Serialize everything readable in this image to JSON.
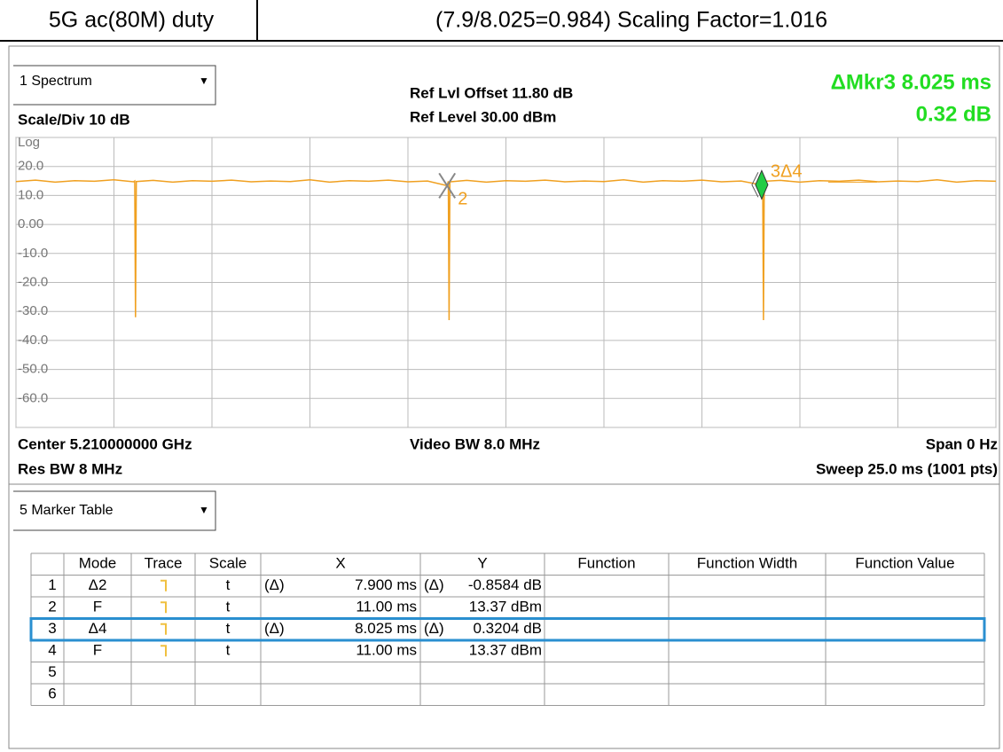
{
  "header": {
    "left": "5G ac(80M) duty",
    "right": "(7.9/8.025=0.984) Scaling Factor=1.016"
  },
  "spectrum": {
    "window": "1 Spectrum",
    "scale_div": "Scale/Div 10 dB",
    "ref_offset": "Ref Lvl Offset 11.80 dB",
    "ref_level": "Ref Level 30.00 dBm",
    "readout": [
      "ΔMkr3  8.025 ms",
      "0.32 dB"
    ],
    "scale_type": "Log",
    "center": "Center 5.210000000 GHz",
    "res_bw": "Res BW 8 MHz",
    "video_bw": "Video BW 8.0 MHz",
    "span": "Span 0 Hz",
    "sweep": "Sweep 25.0 ms (1001 pts)"
  },
  "chart_data": {
    "type": "line",
    "color": "#f0a020",
    "grid": true,
    "xlim": [
      0,
      25
    ],
    "ylim": [
      -70,
      30
    ],
    "xticks": [
      0,
      2.5,
      5,
      7.5,
      10,
      12.5,
      15,
      17.5,
      20,
      22.5,
      25
    ],
    "yticks": [
      {
        "value": 30,
        "label": "Log"
      },
      {
        "value": 20,
        "label": "20.0"
      },
      {
        "value": 10,
        "label": "10.0"
      },
      {
        "value": 0,
        "label": "0.00"
      },
      {
        "value": -10,
        "label": "-10.0"
      },
      {
        "value": -20,
        "label": "-20.0"
      },
      {
        "value": -30,
        "label": "-30.0"
      },
      {
        "value": -40,
        "label": "-40.0"
      },
      {
        "value": -50,
        "label": "-50.0"
      },
      {
        "value": -60,
        "label": "-60.0"
      },
      -70
    ],
    "x": [
      0,
      0.5,
      1,
      1.5,
      2,
      2.5,
      3,
      3.03,
      3.05,
      3.07,
      3.5,
      4,
      4.5,
      5,
      5.5,
      6,
      6.5,
      7,
      7.5,
      8,
      8.5,
      9,
      9.5,
      10,
      10.5,
      11,
      11.03,
      11.05,
      11.07,
      11.5,
      12,
      12.5,
      13,
      13.5,
      14,
      14.5,
      15,
      15.5,
      16,
      16.5,
      17,
      17.5,
      18,
      18.5,
      19,
      19.05,
      19.07,
      19.09,
      19.5,
      20,
      20.5,
      21,
      21.5,
      22,
      22.5,
      23,
      23.5,
      24,
      24.5,
      25
    ],
    "values": [
      14.8,
      15.3,
      14.6,
      15.1,
      14.9,
      15.4,
      14.7,
      15.0,
      -32,
      14.8,
      15.2,
      14.6,
      15.1,
      14.9,
      15.3,
      14.7,
      15.0,
      14.8,
      15.4,
      14.6,
      15.1,
      14.9,
      15.3,
      14.7,
      15.0,
      13.37,
      14.9,
      -33,
      14.7,
      15.2,
      14.6,
      15.1,
      14.9,
      15.3,
      14.7,
      15.0,
      14.8,
      15.4,
      14.6,
      15.1,
      14.9,
      15.3,
      14.7,
      15.0,
      13.69,
      14.8,
      -33,
      14.9,
      15.2,
      14.6,
      15.1,
      14.9,
      15.3,
      14.7,
      15.0,
      14.8,
      15.4,
      14.6,
      15.1,
      14.9
    ],
    "markers": [
      {
        "label": "2",
        "x": 11.0,
        "y": 13.37
      },
      {
        "label": "3Δ4",
        "x": 19.025,
        "y": 13.69
      }
    ]
  },
  "marker_table": {
    "window": "5 Marker Table",
    "columns": [
      "Mode",
      "Trace",
      "Scale",
      "X",
      "Y",
      "Function",
      "Function Width",
      "Function Value"
    ],
    "rows": [
      {
        "n": "1",
        "mode": "Δ2",
        "scale": "t",
        "x_delta": "(Δ)",
        "x": "7.900 ms",
        "y_delta": "(Δ)",
        "y": "-0.8584 dB"
      },
      {
        "n": "2",
        "mode": "F",
        "scale": "t",
        "x": "11.00 ms",
        "y": "13.37 dBm"
      },
      {
        "n": "3",
        "mode": "Δ4",
        "scale": "t",
        "x_delta": "(Δ)",
        "x": "8.025 ms",
        "y_delta": "(Δ)",
        "y": "0.3204 dB"
      },
      {
        "n": "4",
        "mode": "F",
        "scale": "t",
        "x": "11.00 ms",
        "y": "13.37 dBm"
      },
      {
        "n": "5"
      },
      {
        "n": "6"
      }
    ]
  }
}
